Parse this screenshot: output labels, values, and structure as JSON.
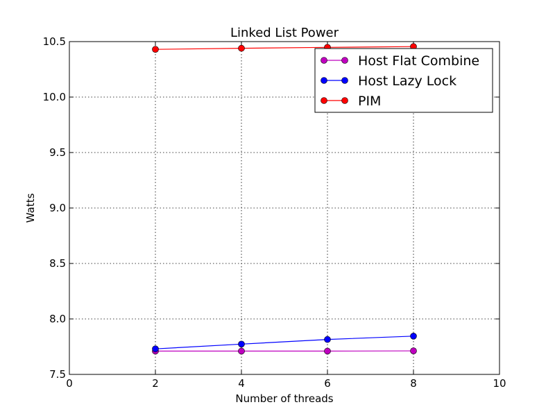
{
  "chart_data": {
    "type": "line",
    "title": "Linked List Power",
    "xlabel": "Number of threads",
    "ylabel": "Watts",
    "xlim": [
      0,
      10
    ],
    "ylim": [
      7.5,
      10.5
    ],
    "xticks": [
      0,
      2,
      4,
      6,
      8,
      10
    ],
    "xtick_labels": [
      "0",
      "2",
      "4",
      "6",
      "8",
      "10"
    ],
    "yticks": [
      7.5,
      8.0,
      8.5,
      9.0,
      9.5,
      10.0,
      10.5
    ],
    "ytick_labels": [
      "7.5",
      "8.0",
      "8.5",
      "9.0",
      "9.5",
      "10.0",
      "10.5"
    ],
    "grid": true,
    "legend_position": "top-right",
    "x": [
      2,
      4,
      6,
      8
    ],
    "series": [
      {
        "name": "Host Flat Combine",
        "color": "#bf00bf",
        "values": [
          7.71,
          7.71,
          7.71,
          7.712
        ]
      },
      {
        "name": "Host Lazy Lock",
        "color": "#0000ff",
        "values": [
          7.73,
          7.773,
          7.815,
          7.845
        ]
      },
      {
        "name": "PIM",
        "color": "#ff0000",
        "values": [
          10.43,
          10.44,
          10.448,
          10.455
        ]
      }
    ]
  }
}
